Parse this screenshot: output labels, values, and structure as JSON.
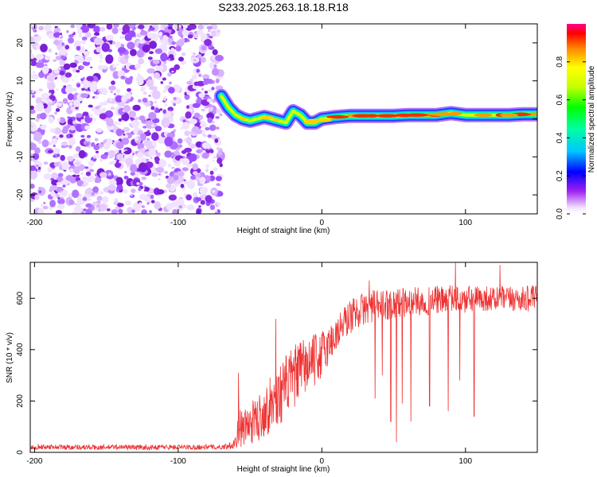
{
  "title": "S233.2025.263.18.18.R18",
  "chart_data": [
    {
      "type": "heatmap",
      "name": "spectrogram",
      "title": "S233.2025.263.18.18.R18",
      "xlabel": "Height of straight line (km)",
      "ylabel": "Frequency (Hz)",
      "xlim": [
        -203,
        150
      ],
      "ylim": [
        -25,
        25
      ],
      "xticks": [
        -200,
        -100,
        0,
        100
      ],
      "yticks": [
        -20,
        -10,
        0,
        10,
        20
      ],
      "noise_region_x": [
        -203,
        -70
      ],
      "signal_track": {
        "x": [
          -70,
          -65,
          -60,
          -55,
          -50,
          -45,
          -40,
          -35,
          -30,
          -25,
          -20,
          -15,
          -10,
          -5,
          0,
          10,
          20,
          30,
          40,
          50,
          60,
          70,
          80,
          90,
          100,
          110,
          120,
          130,
          140,
          150
        ],
        "freq_hz": [
          6,
          3,
          1,
          0,
          -0.5,
          0,
          0.5,
          0,
          -0.5,
          -1,
          2,
          1,
          -1,
          -1,
          0,
          0.5,
          0.8,
          0.8,
          0.8,
          0.8,
          1,
          1,
          1,
          1.5,
          1,
          1,
          1,
          1,
          1.2,
          1.2
        ]
      },
      "colorbar": {
        "label": "Normalized spectral amplitude",
        "ticks": [
          "0.0",
          "0.2",
          "0.4",
          "0.6",
          "0.8"
        ],
        "range": [
          0,
          1
        ]
      }
    },
    {
      "type": "line",
      "name": "snr",
      "xlabel": "Height of straight line (km)",
      "ylabel": "SNR (10 * v/v)",
      "xlim": [
        -203,
        150
      ],
      "ylim": [
        0,
        740
      ],
      "xticks": [
        -200,
        -100,
        0,
        100
      ],
      "yticks": [
        0,
        200,
        400,
        600
      ],
      "series": [
        {
          "name": "SNR",
          "color": "#ee3333",
          "x": [
            -203,
            -190,
            -180,
            -170,
            -160,
            -150,
            -140,
            -130,
            -120,
            -110,
            -100,
            -90,
            -80,
            -70,
            -65,
            -60,
            -57,
            -55,
            -50,
            -45,
            -40,
            -35,
            -30,
            -25,
            -20,
            -15,
            -10,
            -5,
            0,
            5,
            10,
            15,
            20,
            25,
            30,
            35,
            40,
            45,
            50,
            55,
            60,
            65,
            70,
            75,
            80,
            85,
            90,
            95,
            100,
            105,
            110,
            115,
            120,
            125,
            130,
            135,
            140,
            145,
            150
          ],
          "values": [
            20,
            22,
            20,
            21,
            19,
            20,
            21,
            20,
            19,
            21,
            20,
            20,
            21,
            20,
            25,
            40,
            100,
            90,
            110,
            130,
            160,
            190,
            220,
            260,
            290,
            320,
            340,
            360,
            380,
            420,
            460,
            500,
            530,
            550,
            560,
            570,
            570,
            575,
            580,
            585,
            580,
            590,
            585,
            590,
            595,
            590,
            600,
            595,
            590,
            600,
            595,
            600,
            595,
            600,
            595,
            600,
            595,
            600,
            600
          ],
          "noise": [
            10,
            10,
            10,
            10,
            10,
            10,
            10,
            10,
            10,
            10,
            10,
            10,
            10,
            10,
            12,
            30,
            80,
            70,
            80,
            90,
            100,
            110,
            120,
            120,
            120,
            120,
            110,
            100,
            100,
            80,
            70,
            70,
            70,
            65,
            65,
            65,
            60,
            60,
            60,
            60,
            55,
            55,
            55,
            55,
            55,
            55,
            55,
            55,
            55,
            55,
            50,
            50,
            50,
            50,
            50,
            50,
            50,
            50,
            50
          ],
          "dropouts": [
            {
              "x": 37,
              "value": 210
            },
            {
              "x": 42,
              "value": 300
            },
            {
              "x": 48,
              "value": 120
            },
            {
              "x": 52,
              "value": 40
            },
            {
              "x": 56,
              "value": 190
            },
            {
              "x": 62,
              "value": 120
            },
            {
              "x": 75,
              "value": 180
            },
            {
              "x": 88,
              "value": 160
            },
            {
              "x": 96,
              "value": 280
            },
            {
              "x": 106,
              "value": 140
            }
          ],
          "spikes": [
            {
              "x": -32,
              "value": 520
            },
            {
              "x": -58,
              "value": 310
            },
            {
              "x": 33,
              "value": 670
            },
            {
              "x": 93,
              "value": 740
            },
            {
              "x": 124,
              "value": 730
            }
          ]
        }
      ]
    }
  ]
}
